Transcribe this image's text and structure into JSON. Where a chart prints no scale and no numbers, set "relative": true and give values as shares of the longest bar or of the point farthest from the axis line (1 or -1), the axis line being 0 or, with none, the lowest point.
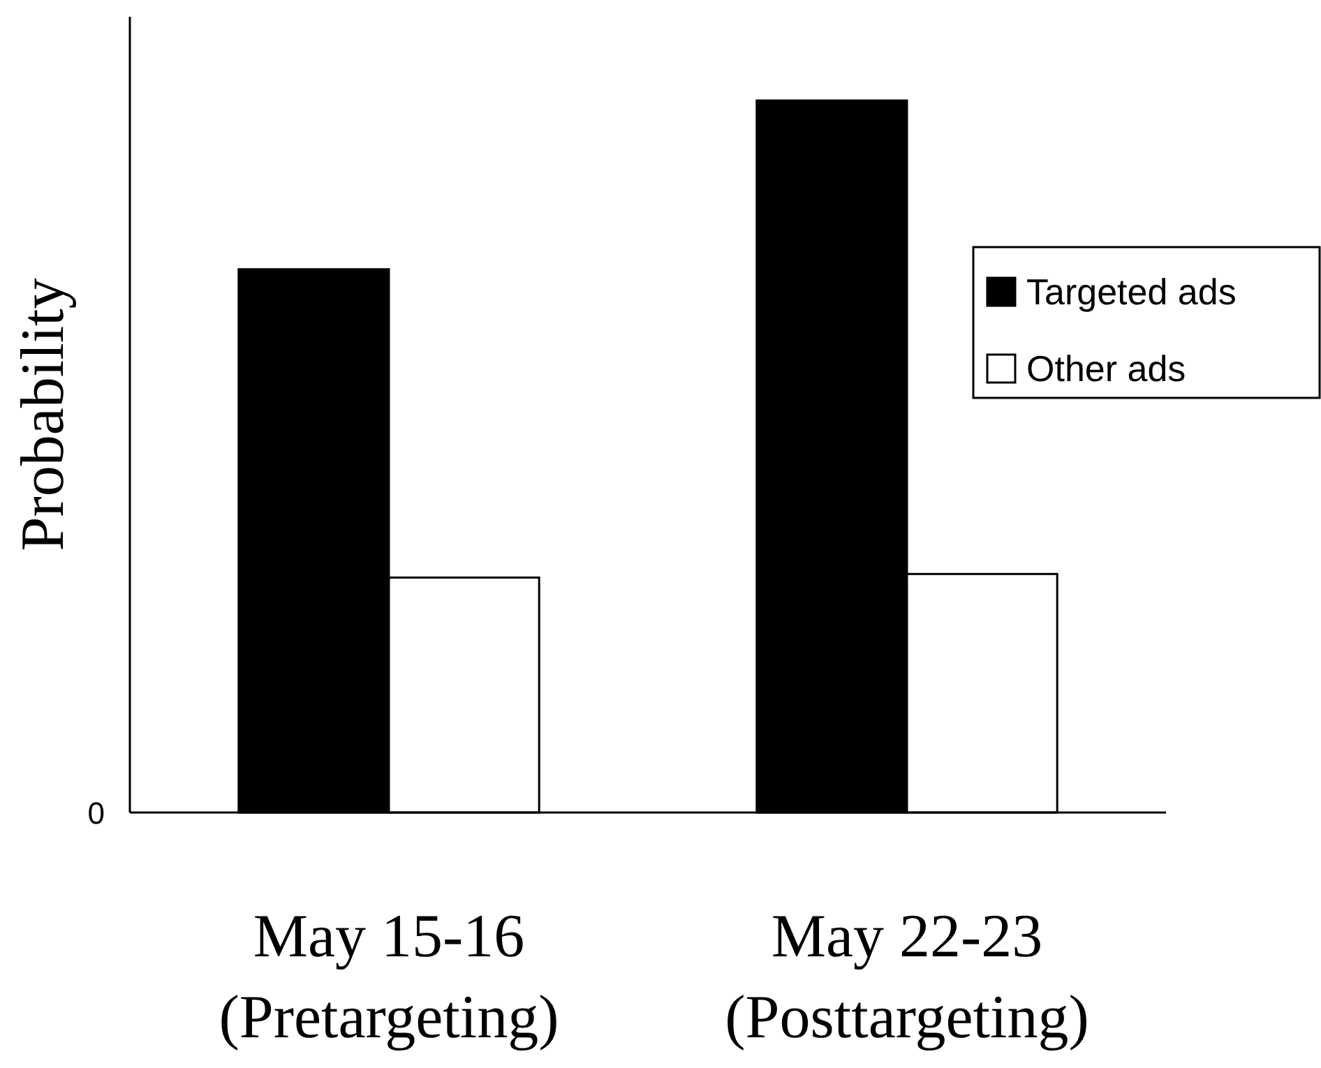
{
  "chart_data": {
    "type": "bar",
    "relative": true,
    "ylabel": "Probability",
    "categories": [
      "May 15-16\n(Pretargeting)",
      "May 22-23\n(Posttargeting)"
    ],
    "series": [
      {
        "name": "Targeted ads",
        "color": "#000000",
        "values": [
          0.763,
          1
        ]
      },
      {
        "name": "Other ads",
        "color": "#ffffff",
        "values": [
          0.33,
          0.335
        ]
      }
    ],
    "legend": "right",
    "annotations": [
      "0"
    ]
  }
}
